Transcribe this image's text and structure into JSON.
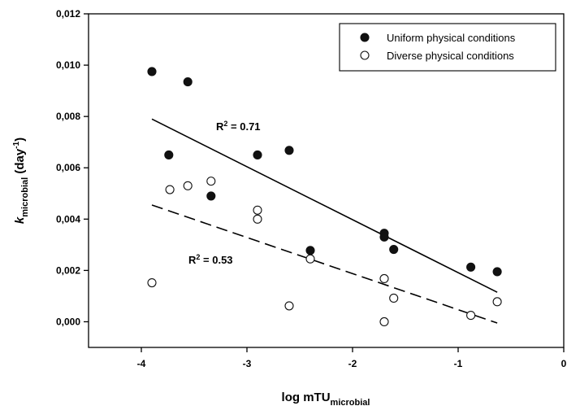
{
  "chart_data": {
    "type": "scatter",
    "title": "",
    "xlabel": {
      "main": "log mTU",
      "subscript": "microbial"
    },
    "ylabel": {
      "italic": "k",
      "subscript": "microbial",
      "main": " (day",
      "superscript": "-1",
      "close": ")"
    },
    "xlim": [
      -4.5,
      0
    ],
    "ylim": [
      -0.001,
      0.012
    ],
    "x_ticks": [
      -4,
      -3,
      -2,
      -1,
      0
    ],
    "x_tick_labels": [
      "-4",
      "-3",
      "-2",
      "-1",
      "0"
    ],
    "y_ticks": [
      0,
      0.002,
      0.004,
      0.006,
      0.008,
      0.01,
      0.012
    ],
    "y_tick_labels": [
      "0,000",
      "0,002",
      "0,004",
      "0,006",
      "0,008",
      "0,010",
      "0,012"
    ],
    "grid": false,
    "legend_position": "top-right",
    "series": [
      {
        "name": "Uniform physical conditions",
        "marker": "filled-circle",
        "color": "#111111",
        "points": [
          [
            -3.9,
            0.00975
          ],
          [
            -3.56,
            0.00935
          ],
          [
            -3.74,
            0.0065
          ],
          [
            -3.34,
            0.0049
          ],
          [
            -2.9,
            0.0065
          ],
          [
            -2.6,
            0.00668
          ],
          [
            -2.4,
            0.00278
          ],
          [
            -1.7,
            0.00345
          ],
          [
            -1.7,
            0.0033
          ],
          [
            -1.61,
            0.00282
          ],
          [
            -0.88,
            0.00213
          ],
          [
            -0.63,
            0.00195
          ]
        ],
        "fit": {
          "x": [
            -3.9,
            -0.63
          ],
          "y": [
            0.0079,
            0.00115
          ],
          "style": "solid",
          "r2_label": "R",
          "r2_superscript": "2",
          "r2_value": " = 0.71"
        }
      },
      {
        "name": "Diverse physical conditions",
        "marker": "open-circle",
        "color": "#111111",
        "points": [
          [
            -3.73,
            0.00515
          ],
          [
            -3.56,
            0.0053
          ],
          [
            -3.34,
            0.00548
          ],
          [
            -2.9,
            0.00435
          ],
          [
            -2.9,
            0.004
          ],
          [
            -2.4,
            0.00245
          ],
          [
            -1.7,
            0.00168
          ],
          [
            -1.61,
            0.00092
          ],
          [
            -3.9,
            0.00152
          ],
          [
            -2.6,
            0.00062
          ],
          [
            -1.7,
            0.0
          ],
          [
            -0.88,
            0.00025
          ],
          [
            -0.63,
            0.00078
          ]
        ],
        "fit": {
          "x": [
            -3.9,
            -0.63
          ],
          "y": [
            0.00455,
            -5e-05
          ],
          "style": "dashed",
          "r2_label": "R",
          "r2_superscript": "2",
          "r2_value": " = 0.53"
        }
      }
    ]
  }
}
